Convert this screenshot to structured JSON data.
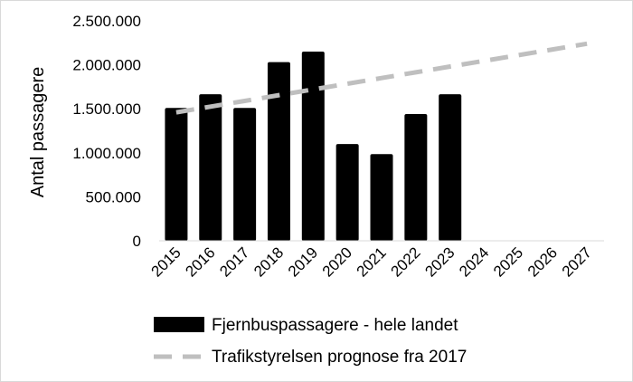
{
  "chart_data": {
    "type": "bar",
    "categories": [
      "2015",
      "2016",
      "2017",
      "2018",
      "2019",
      "2020",
      "2021",
      "2022",
      "2023",
      "2024",
      "2025",
      "2026",
      "2027"
    ],
    "series": [
      {
        "name": "Fjernbuspassagere - hele landet",
        "type": "bar",
        "color": "#000000",
        "values": [
          1510000,
          1665000,
          1510000,
          2030000,
          2150000,
          1100000,
          985000,
          1440000,
          1665000,
          null,
          null,
          null,
          null
        ]
      },
      {
        "name": "Trafikstyrelsen prognose fra 2017",
        "type": "line",
        "style": "dashed",
        "color": "#bfbfbf",
        "values": [
          1460000,
          1525000,
          1590000,
          1655000,
          1720000,
          1785000,
          1850000,
          1915000,
          1980000,
          2045000,
          2110000,
          2175000,
          2240000
        ]
      }
    ],
    "ylabel": "Antal passagere",
    "xlabel": "",
    "title": "",
    "ylim": [
      0,
      2500000
    ],
    "yticks": [
      0,
      500000,
      1000000,
      1500000,
      2000000,
      2500000
    ],
    "ytick_labels": [
      "0",
      "500.000",
      "1.000.000",
      "1.500.000",
      "2.000.000",
      "2.500.000"
    ],
    "grid": false,
    "legend_position": "bottom"
  }
}
